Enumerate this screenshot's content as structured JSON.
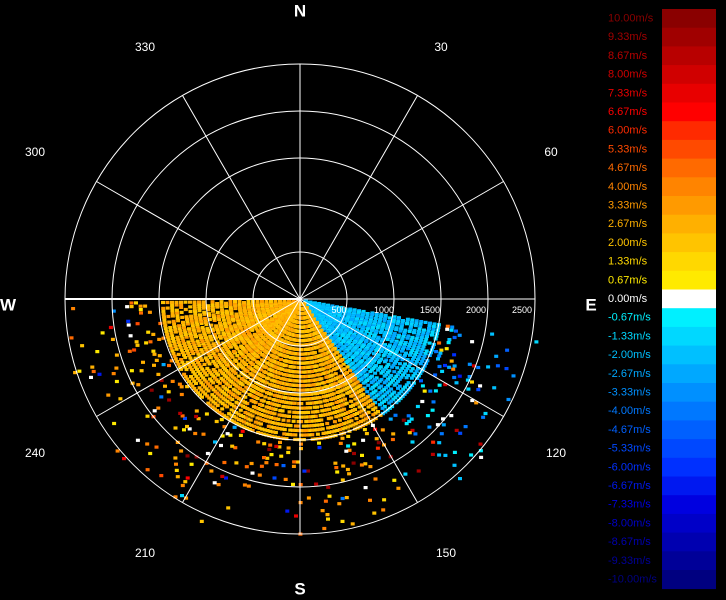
{
  "chart_data": {
    "type": "polar-radar",
    "compass": {
      "N": "N",
      "E": "E",
      "S": "S",
      "W": "W"
    },
    "bearing_labels": [
      "30",
      "60",
      "120",
      "150",
      "210",
      "240",
      "300",
      "330"
    ],
    "range_ticks": [
      "500",
      "1000",
      "1500",
      "2000",
      "2500"
    ],
    "range_max": 2500,
    "rays_every_deg": 30,
    "colorbar": [
      {
        "label": "10.00m/s",
        "value": 10.0,
        "color": "#8a0000"
      },
      {
        "label": "9.33m/s",
        "value": 9.33,
        "color": "#a00000"
      },
      {
        "label": "8.67m/s",
        "value": 8.67,
        "color": "#b80000"
      },
      {
        "label": "8.00m/s",
        "value": 8.0,
        "color": "#d00000"
      },
      {
        "label": "7.33m/s",
        "value": 7.33,
        "color": "#e80000"
      },
      {
        "label": "6.67m/s",
        "value": 6.67,
        "color": "#ff0000"
      },
      {
        "label": "6.00m/s",
        "value": 6.0,
        "color": "#ff2a00"
      },
      {
        "label": "5.33m/s",
        "value": 5.33,
        "color": "#ff4a00"
      },
      {
        "label": "4.67m/s",
        "value": 4.67,
        "color": "#ff6a00"
      },
      {
        "label": "4.00m/s",
        "value": 4.0,
        "color": "#ff8400"
      },
      {
        "label": "3.33m/s",
        "value": 3.33,
        "color": "#ff9a00"
      },
      {
        "label": "2.67m/s",
        "value": 2.67,
        "color": "#ffb000"
      },
      {
        "label": "2.00m/s",
        "value": 2.0,
        "color": "#ffc400"
      },
      {
        "label": "1.33m/s",
        "value": 1.33,
        "color": "#ffd800"
      },
      {
        "label": "0.67m/s",
        "value": 0.67,
        "color": "#ffea00"
      },
      {
        "label": "0.00m/s",
        "value": 0.0,
        "color": "#ffffff"
      },
      {
        "label": "-0.67m/s",
        "value": -0.67,
        "color": "#00f0ff"
      },
      {
        "label": "-1.33m/s",
        "value": -1.33,
        "color": "#00d8ff"
      },
      {
        "label": "-2.00m/s",
        "value": -2.0,
        "color": "#00c0ff"
      },
      {
        "label": "-2.67m/s",
        "value": -2.67,
        "color": "#00a8ff"
      },
      {
        "label": "-3.33m/s",
        "value": -3.33,
        "color": "#0090ff"
      },
      {
        "label": "-4.00m/s",
        "value": -4.0,
        "color": "#0078ff"
      },
      {
        "label": "-4.67m/s",
        "value": -4.67,
        "color": "#0060ff"
      },
      {
        "label": "-5.33m/s",
        "value": -5.33,
        "color": "#0048ff"
      },
      {
        "label": "-6.00m/s",
        "value": -6.0,
        "color": "#0030ff"
      },
      {
        "label": "-6.67m/s",
        "value": -6.67,
        "color": "#0018f0"
      },
      {
        "label": "-7.33m/s",
        "value": -7.33,
        "color": "#0000e0"
      },
      {
        "label": "-8.00m/s",
        "value": -8.0,
        "color": "#0000c8"
      },
      {
        "label": "-8.67m/s",
        "value": -8.67,
        "color": "#0000b0"
      },
      {
        "label": "-9.33m/s",
        "value": -9.33,
        "color": "#000098"
      },
      {
        "label": "-10.00m/s",
        "value": -10.0,
        "color": "#000080"
      }
    ],
    "scan_sector": {
      "from_deg": 100,
      "to_deg": 270,
      "regions": [
        {
          "from_deg": 100,
          "to_deg": 145,
          "max_range": 1500,
          "velocity": -2.0
        },
        {
          "from_deg": 145,
          "to_deg": 270,
          "max_range": 1500,
          "velocity": 2.5
        }
      ]
    }
  }
}
